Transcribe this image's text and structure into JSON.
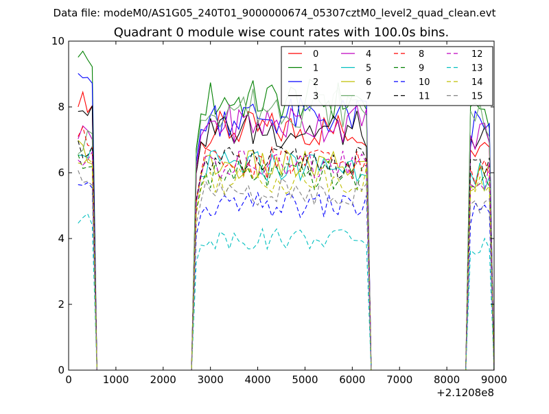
{
  "chart_data": {
    "type": "line",
    "suptitle": "Data file: modeM0/AS1G05_240T01_9000000674_05307cztM0_level2_quad_clean.evt",
    "title": "Quadrant 0 module wise count rates with 100.0s bins.",
    "xlabel": "",
    "ylabel": "",
    "x_offset_label": "+2.1208e8",
    "xlim": [
      0,
      9000
    ],
    "ylim": [
      0,
      10
    ],
    "xticks": [
      0,
      1000,
      2000,
      3000,
      4000,
      5000,
      6000,
      7000,
      8000,
      9000
    ],
    "yticks": [
      0,
      2,
      4,
      6,
      8,
      10
    ],
    "grid": false,
    "legend": {
      "placement": "top-right",
      "columns": 4
    },
    "x": [
      200,
      300,
      400,
      500,
      600,
      700,
      800,
      900,
      1000,
      1100,
      1200,
      1300,
      1400,
      1500,
      1600,
      1700,
      1800,
      1900,
      2000,
      2100,
      2200,
      2300,
      2400,
      2500,
      2600,
      2700,
      2800,
      2900,
      3000,
      3100,
      3200,
      3300,
      3400,
      3500,
      3600,
      3700,
      3800,
      3900,
      4000,
      4100,
      4200,
      4300,
      4400,
      4500,
      4600,
      4700,
      4800,
      4900,
      5000,
      5100,
      5200,
      5300,
      5400,
      5500,
      5600,
      5700,
      5800,
      5900,
      6000,
      6100,
      6200,
      6300,
      6400,
      6500,
      6600,
      6700,
      6800,
      6900,
      7000,
      7100,
      7200,
      7300,
      7400,
      7500,
      7600,
      7700,
      7800,
      7900,
      8000,
      8100,
      8200,
      8300,
      8400,
      8500,
      8600,
      8700,
      8800,
      8900,
      9000
    ],
    "on_intervals": [
      [
        200,
        500
      ],
      [
        2700,
        6300
      ],
      [
        8500,
        8900
      ]
    ],
    "series": [
      {
        "name": "0",
        "color": "#ff0000",
        "dash": "solid",
        "level": 7.3,
        "start": 8.3
      },
      {
        "name": "1",
        "color": "#008000",
        "dash": "solid",
        "level": 8.2,
        "start": 9.7
      },
      {
        "name": "2",
        "color": "#0000ff",
        "dash": "solid",
        "level": 7.7,
        "start": 9.3
      },
      {
        "name": "3",
        "color": "#000000",
        "dash": "solid",
        "level": 7.3,
        "start": 8.0
      },
      {
        "name": "4",
        "color": "#bf00bf",
        "dash": "solid",
        "level": 7.5,
        "start": 7.2
      },
      {
        "name": "5",
        "color": "#00bfbf",
        "dash": "solid",
        "level": 6.2,
        "start": 6.8
      },
      {
        "name": "6",
        "color": "#bfbf00",
        "dash": "solid",
        "level": 6.2,
        "start": 6.7
      },
      {
        "name": "7",
        "color": "#6aa86a",
        "dash": "solid",
        "level": 8.0,
        "start": 6.8
      },
      {
        "name": "8",
        "color": "#ff0000",
        "dash": "dashed",
        "level": 6.3,
        "start": 7.2
      },
      {
        "name": "9",
        "color": "#008000",
        "dash": "dashed",
        "level": 5.9,
        "start": 6.3
      },
      {
        "name": "10",
        "color": "#0000ff",
        "dash": "dashed",
        "level": 5.0,
        "start": 5.5
      },
      {
        "name": "11",
        "color": "#000000",
        "dash": "dashed",
        "level": 6.3,
        "start": 6.8
      },
      {
        "name": "12",
        "color": "#bf00bf",
        "dash": "dashed",
        "level": 6.2,
        "start": 6.4
      },
      {
        "name": "13",
        "color": "#00bfbf",
        "dash": "dashed",
        "level": 4.0,
        "start": 4.6
      },
      {
        "name": "14",
        "color": "#bfbf00",
        "dash": "dashed",
        "level": 5.8,
        "start": 6.3
      },
      {
        "name": "15",
        "color": "#808080",
        "dash": "dashed",
        "level": 5.4,
        "start": 6.0
      }
    ]
  }
}
